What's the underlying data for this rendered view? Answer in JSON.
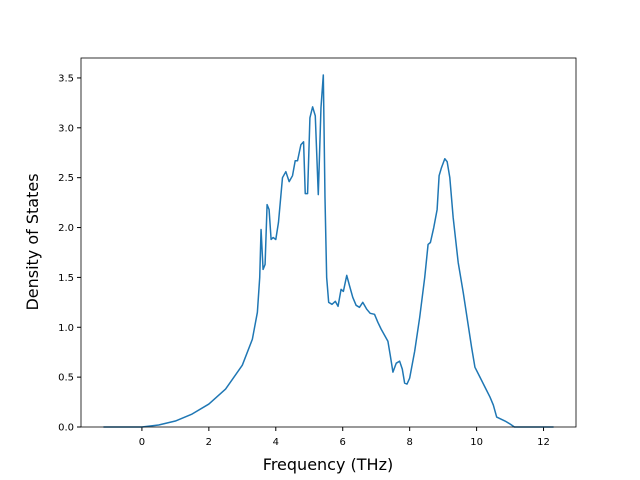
{
  "chart_data": {
    "type": "line",
    "xlabel": "Frequency (THz)",
    "ylabel": "Density of States",
    "xlim": [
      -1.82,
      12.97
    ],
    "ylim": [
      0,
      3.7
    ],
    "xticks": [
      0,
      2,
      4,
      6,
      8,
      10,
      12
    ],
    "yticks": [
      {
        "value": 0,
        "label": "0.0"
      },
      {
        "value": 0.5,
        "label": "0.5"
      },
      {
        "value": 1,
        "label": "1.0"
      },
      {
        "value": 1.5,
        "label": "1.5"
      },
      {
        "value": 2,
        "label": "2.0"
      },
      {
        "value": 2.5,
        "label": "2.5"
      },
      {
        "value": 3,
        "label": "3.0"
      },
      {
        "value": 3.5,
        "label": "3.5"
      }
    ],
    "grid": false,
    "series": [
      {
        "color": "#1f77b4",
        "x": [
          -1.15,
          0,
          0.5,
          1,
          1.5,
          2,
          2.5,
          3,
          3.3,
          3.45,
          3.52,
          3.56,
          3.62,
          3.68,
          3.74,
          3.8,
          3.86,
          3.92,
          4.0,
          4.08,
          4.2,
          4.3,
          4.4,
          4.5,
          4.58,
          4.65,
          4.75,
          4.83,
          4.88,
          4.95,
          5.02,
          5.1,
          5.18,
          5.27,
          5.35,
          5.42,
          5.47,
          5.52,
          5.58,
          5.68,
          5.78,
          5.86,
          5.95,
          6.02,
          6.12,
          6.2,
          6.3,
          6.4,
          6.5,
          6.6,
          6.72,
          6.82,
          6.95,
          7.05,
          7.15,
          7.25,
          7.35,
          7.42,
          7.5,
          7.6,
          7.7,
          7.78,
          7.85,
          7.92,
          8.0,
          8.15,
          8.3,
          8.45,
          8.55,
          8.62,
          8.72,
          8.82,
          8.88,
          8.95,
          9.05,
          9.12,
          9.2,
          9.3,
          9.45,
          9.6,
          9.85,
          9.95,
          10.1,
          10.25,
          10.4,
          10.5,
          10.6,
          10.85,
          11.0,
          11.13,
          12.3
        ],
        "values": [
          0,
          0,
          0.02,
          0.06,
          0.13,
          0.23,
          0.38,
          0.62,
          0.88,
          1.15,
          1.5,
          1.98,
          1.58,
          1.63,
          2.23,
          2.18,
          1.88,
          1.9,
          1.88,
          2.05,
          2.5,
          2.56,
          2.46,
          2.52,
          2.67,
          2.67,
          2.83,
          2.86,
          2.34,
          2.34,
          3.1,
          3.21,
          3.12,
          2.33,
          3.2,
          3.53,
          2.3,
          1.5,
          1.25,
          1.23,
          1.26,
          1.21,
          1.38,
          1.36,
          1.52,
          1.42,
          1.3,
          1.22,
          1.2,
          1.25,
          1.18,
          1.14,
          1.13,
          1.05,
          0.98,
          0.92,
          0.86,
          0.72,
          0.55,
          0.64,
          0.66,
          0.58,
          0.44,
          0.43,
          0.49,
          0.76,
          1.1,
          1.5,
          1.83,
          1.85,
          2.0,
          2.18,
          2.52,
          2.6,
          2.69,
          2.66,
          2.5,
          2.1,
          1.65,
          1.35,
          0.8,
          0.6,
          0.5,
          0.4,
          0.3,
          0.22,
          0.1,
          0.06,
          0.03,
          0,
          0
        ]
      }
    ]
  }
}
